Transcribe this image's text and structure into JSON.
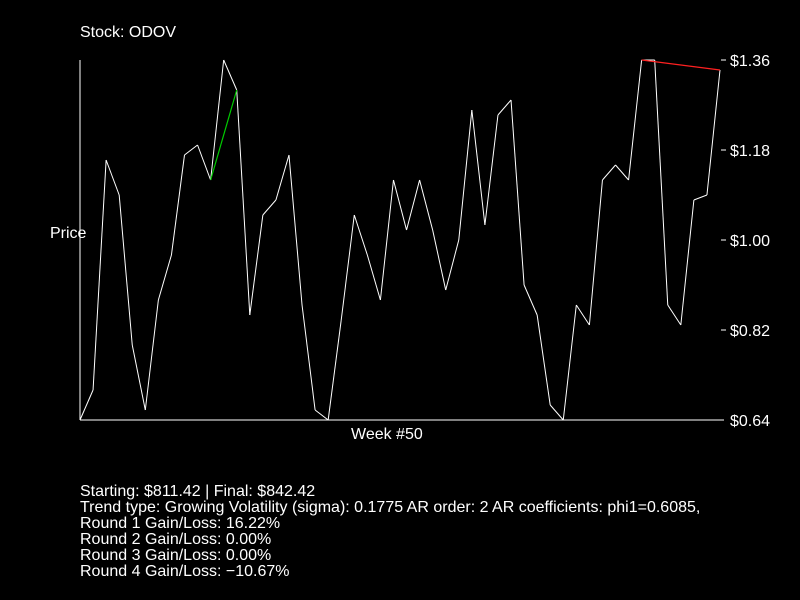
{
  "chart_data": {
    "type": "line",
    "title": "Stock: ODOV",
    "ylabel": "Price",
    "xlabel": "Week #50",
    "ylim": [
      0.64,
      1.36
    ],
    "y_ticks": [
      "$1.36",
      "$1.18",
      "$1.00",
      "$0.82",
      "$0.64"
    ],
    "y_tick_values": [
      1.36,
      1.18,
      1.0,
      0.82,
      0.64
    ],
    "colors": {
      "line": "#ffffff",
      "gain_segment": "#00cc00",
      "loss_segment": "#ff2020",
      "axis": "#ffffff"
    },
    "series": [
      {
        "values": [
          0.64,
          0.7,
          1.16,
          1.09,
          0.79,
          0.66,
          0.88,
          0.97,
          1.17,
          1.19,
          1.12,
          1.36,
          1.3,
          0.85,
          1.05,
          1.08,
          1.17,
          0.87,
          0.66,
          0.64,
          0.84,
          1.05,
          0.97,
          0.88,
          1.12,
          1.02,
          1.12,
          1.02,
          0.9,
          1.0,
          1.26,
          1.03,
          1.25,
          1.28,
          0.91,
          0.85,
          0.67,
          0.64,
          0.87,
          0.83,
          1.12,
          1.15,
          1.12,
          1.36,
          1.36,
          0.87,
          0.83,
          1.08,
          1.09,
          1.34
        ]
      }
    ],
    "highlights": [
      {
        "kind": "gain",
        "from_index": 10,
        "to_index": 12
      },
      {
        "kind": "loss",
        "from_index": 43,
        "to_index": 49
      }
    ]
  },
  "info": {
    "line1": "Starting: $811.42 | Final: $842.42",
    "line2": "Trend type: Growing Volatility (sigma): 0.1775 AR order: 2 AR coefficients: phi1=0.6085,",
    "line3": "Round 1 Gain/Loss: 16.22%",
    "line4": "Round 2 Gain/Loss: 0.00%",
    "line5": "Round 3 Gain/Loss: 0.00%",
    "line6": "Round 4 Gain/Loss: −10.67%"
  }
}
